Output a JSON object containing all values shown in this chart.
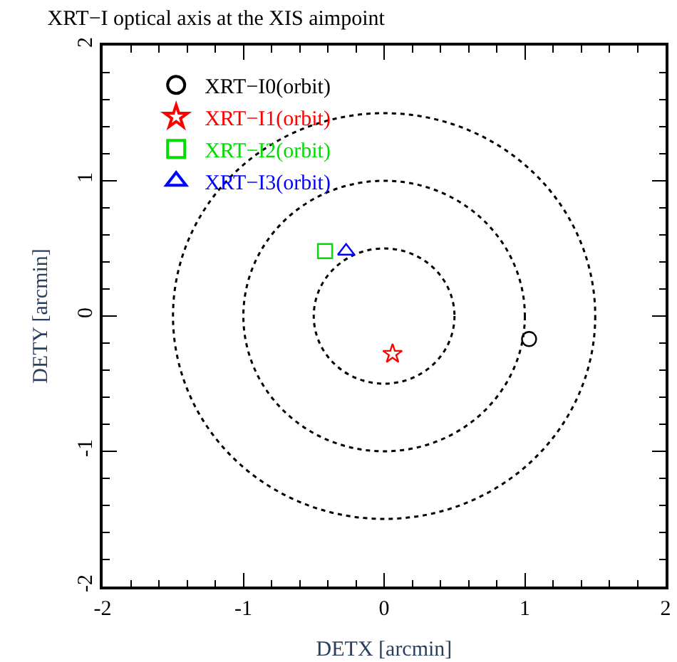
{
  "chart_data": {
    "type": "scatter",
    "title": "XRT−I optical axis at the XIS aimpoint",
    "xlabel": "DETX [arcmin]",
    "ylabel": "DETY [arcmin]",
    "xlim": [
      -2,
      2
    ],
    "ylim": [
      -2,
      2
    ],
    "xticks": [
      -2,
      -1,
      0,
      1,
      2
    ],
    "yticks": [
      -2,
      -1,
      0,
      1,
      2
    ],
    "grid": false,
    "legend": "top left",
    "series": [
      {
        "name": "XRT−I0(orbit)",
        "color": "#000000",
        "marker": "circle",
        "x": [
          1.03
        ],
        "values": [
          -0.17
        ]
      },
      {
        "name": "XRT−I1(orbit)",
        "color": "#ff0000",
        "marker": "star",
        "x": [
          0.06
        ],
        "values": [
          -0.28
        ]
      },
      {
        "name": "XRT−I2(orbit)",
        "color": "#00dd00",
        "marker": "square",
        "x": [
          -0.42
        ],
        "values": [
          0.48
        ]
      },
      {
        "name": "XRT−I3(orbit)",
        "color": "#0000ff",
        "marker": "triangle",
        "x": [
          -0.27
        ],
        "values": [
          0.48
        ]
      }
    ]
  }
}
